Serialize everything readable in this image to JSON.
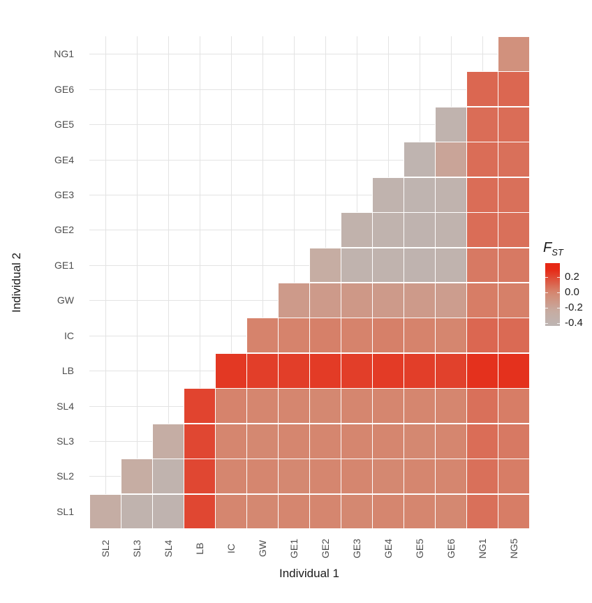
{
  "figure": {
    "background": "#ffffff",
    "panel_grid_color": "#e3e3e3",
    "cell_border_color": "#ffffff",
    "axis_text_color": "#4d4d4d",
    "axis_title_color": "#1a1a1a"
  },
  "chart_data": {
    "type": "heatmap",
    "title": "",
    "xlabel": "Individual 1",
    "ylabel": "Individual 2",
    "x_categories": [
      "SL2",
      "SL3",
      "SL4",
      "LB",
      "IC",
      "GW",
      "GE1",
      "GE2",
      "GE3",
      "GE4",
      "GE5",
      "GE6",
      "NG1",
      "NG5"
    ],
    "y_categories": [
      "NG1",
      "GE6",
      "GE5",
      "GE4",
      "GE3",
      "GE2",
      "GE1",
      "GW",
      "IC",
      "LB",
      "SL4",
      "SL3",
      "SL2",
      "SL1"
    ],
    "grid": true,
    "legend": {
      "title_main": "F",
      "title_sub": "ST",
      "position": "right",
      "domain": [
        0.38,
        -0.44
      ],
      "ticks": [
        {
          "label": "0.2",
          "value": 0.2
        },
        {
          "label": "0.0",
          "value": 0.0
        },
        {
          "label": "-0.2",
          "value": -0.2
        },
        {
          "label": "-0.4",
          "value": -0.4
        }
      ]
    },
    "colormap_stops": [
      [
        -0.45,
        "#bcb6b4"
      ],
      [
        -0.25,
        "#c6aca2"
      ],
      [
        0.0,
        "#d5866f"
      ],
      [
        0.3,
        "#e62814"
      ]
    ],
    "rows": [
      {
        "label": "NG1",
        "values": [
          -0.07
        ]
      },
      {
        "label": "GE6",
        "values": [
          0.1,
          0.1
        ]
      },
      {
        "label": "GE5",
        "values": [
          -0.38,
          0.08,
          0.08
        ]
      },
      {
        "label": "GE4",
        "values": [
          -0.4,
          -0.2,
          0.08,
          0.07
        ]
      },
      {
        "label": "GE3",
        "values": [
          -0.38,
          -0.4,
          -0.38,
          0.08,
          0.07
        ]
      },
      {
        "label": "GE2",
        "values": [
          -0.36,
          -0.38,
          -0.39,
          -0.38,
          0.08,
          0.07
        ]
      },
      {
        "label": "GE1",
        "values": [
          -0.26,
          -0.38,
          -0.38,
          -0.39,
          -0.38,
          0.04,
          0.04
        ]
      },
      {
        "label": "GW",
        "values": [
          -0.13,
          -0.13,
          -0.12,
          -0.13,
          -0.13,
          -0.15,
          0.03,
          0.02
        ]
      },
      {
        "label": "IC",
        "values": [
          0.01,
          0.01,
          0.02,
          0.01,
          0.02,
          0.01,
          0.0,
          0.1,
          0.09
        ]
      },
      {
        "label": "LB",
        "values": [
          0.25,
          0.23,
          0.23,
          0.24,
          0.23,
          0.24,
          0.23,
          0.22,
          0.27,
          0.27
        ]
      },
      {
        "label": "SL4",
        "values": [
          0.21,
          0.01,
          0.0,
          0.0,
          -0.01,
          0.0,
          0.0,
          0.0,
          0.0,
          0.07,
          0.03
        ]
      },
      {
        "label": "SL3",
        "values": [
          -0.27,
          0.2,
          0.0,
          -0.01,
          0.0,
          0.0,
          0.0,
          0.0,
          -0.01,
          0.0,
          0.08,
          0.04
        ]
      },
      {
        "label": "SL2",
        "values": [
          -0.26,
          -0.38,
          0.2,
          0.0,
          0.0,
          -0.01,
          0.0,
          0.0,
          -0.01,
          0.0,
          0.0,
          0.07,
          0.03
        ]
      },
      {
        "label": "SL1",
        "values": [
          -0.27,
          -0.38,
          -0.39,
          0.2,
          0.0,
          -0.01,
          0.0,
          0.0,
          -0.01,
          0.0,
          0.0,
          -0.01,
          0.07,
          0.03
        ]
      }
    ]
  }
}
